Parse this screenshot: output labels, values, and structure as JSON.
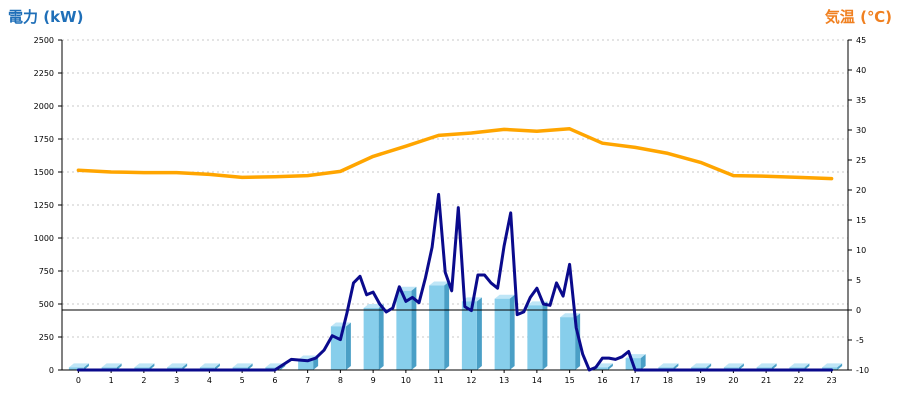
{
  "chart_data": {
    "type": "bar+line",
    "title_left": "電力 (kW)",
    "title_right": "気温 (℃)",
    "colors": {
      "title_left": "#1f6fb8",
      "title_right": "#f08020",
      "bar_front": "#87ceeb",
      "bar_top": "#bfe6f7",
      "bar_side": "#4a9fc6",
      "power_line": "#0a0a8c",
      "temp_line": "#ffa500",
      "grid": "#c8c8c8"
    },
    "y_left": {
      "min": 0,
      "max": 2500,
      "ticks": [
        "0",
        "250",
        "500",
        "750",
        "1000",
        "1250",
        "1500",
        "1750",
        "2000",
        "2250",
        "2500"
      ]
    },
    "y_right": {
      "min": -10,
      "max": 45,
      "ticks": [
        "-10",
        "-5",
        "0",
        "5",
        "10",
        "15",
        "20",
        "25",
        "30",
        "35",
        "40",
        "45"
      ]
    },
    "grid": true,
    "reference_line_right_value": 0,
    "categories": [
      "0",
      "1",
      "2",
      "3",
      "4",
      "5",
      "6",
      "7",
      "8",
      "9",
      "10",
      "11",
      "12",
      "13",
      "14",
      "15",
      "16",
      "17",
      "18",
      "19",
      "20",
      "21",
      "22",
      "23"
    ],
    "bars": [
      20,
      20,
      20,
      20,
      20,
      20,
      20,
      80,
      330,
      470,
      600,
      640,
      520,
      540,
      490,
      400,
      20,
      90,
      20,
      20,
      20,
      20,
      20,
      20
    ],
    "power_line": {
      "x": [
        0,
        1,
        2,
        3,
        4,
        5,
        6,
        6.5,
        7,
        7.25,
        7.5,
        7.75,
        8,
        8.2,
        8.4,
        8.6,
        8.8,
        9,
        9.2,
        9.4,
        9.6,
        9.8,
        10,
        10.2,
        10.4,
        10.6,
        10.8,
        11,
        11.2,
        11.4,
        11.6,
        11.8,
        12,
        12.2,
        12.4,
        12.6,
        12.8,
        13,
        13.2,
        13.4,
        13.6,
        13.8,
        14,
        14.2,
        14.4,
        14.6,
        14.8,
        15,
        15.2,
        15.4,
        15.6,
        15.8,
        16,
        16.2,
        16.4,
        16.6,
        16.8,
        17,
        17.2,
        17.5,
        18,
        19,
        20,
        21,
        22,
        23
      ],
      "y": [
        0,
        0,
        0,
        0,
        0,
        0,
        0,
        80,
        70,
        90,
        150,
        260,
        230,
        430,
        660,
        710,
        570,
        590,
        500,
        440,
        470,
        630,
        520,
        550,
        510,
        700,
        930,
        1330,
        740,
        600,
        1230,
        480,
        450,
        720,
        720,
        660,
        620,
        940,
        1190,
        420,
        440,
        550,
        620,
        500,
        490,
        660,
        560,
        800,
        320,
        120,
        0,
        20,
        90,
        90,
        80,
        100,
        140,
        0,
        0,
        0,
        0,
        0,
        0,
        0,
        0,
        0
      ]
    },
    "temp_line": {
      "x": [
        0,
        1,
        2,
        3,
        4,
        5,
        6,
        7,
        8,
        9,
        10,
        11,
        12,
        13,
        14,
        15,
        16,
        17,
        18,
        19,
        20,
        21,
        22,
        23
      ],
      "y": [
        23.3,
        23,
        22.9,
        22.9,
        22.6,
        22.1,
        22.2,
        22.4,
        23.1,
        25.6,
        27.3,
        29.1,
        29.5,
        30.1,
        29.8,
        30.2,
        27.8,
        27.1,
        26.1,
        24.6,
        22.4,
        22.3,
        22.1,
        21.9
      ]
    }
  }
}
